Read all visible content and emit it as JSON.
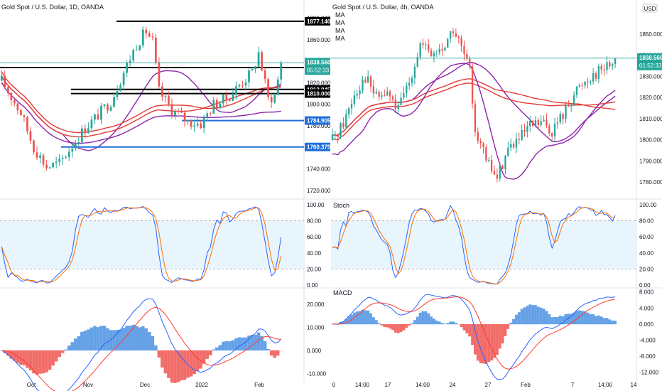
{
  "chart_data": [
    {
      "type": "candlestick",
      "title": "Gold Spot / U.S. Dollar, 1D, OANDA",
      "y_axis": {
        "range": [
          1712,
          1885
        ],
        "ticks": [
          1720.0,
          1740.0,
          1760.0,
          1780.0,
          1800.0,
          1820.0,
          1840.0,
          1860.0,
          1880.0
        ]
      },
      "x_ticks": [
        "Oct",
        "Nov",
        "Dec",
        "2022",
        "Feb"
      ],
      "horizontal_levels": [
        {
          "value": 1877.14,
          "label": "1877.140",
          "color": "#000000"
        },
        {
          "value": 1834.195,
          "label": "1834.195",
          "color": "#000000"
        },
        {
          "value": 1813.845,
          "label": "1813.845",
          "color": "#000000"
        },
        {
          "value": 1810.0,
          "label": "1810.000",
          "color": "#000000"
        },
        {
          "value": 1784.905,
          "label": "1784.905",
          "color": "#1e6fd9"
        },
        {
          "value": 1760.375,
          "label": "1760.375",
          "color": "#1e6fd9"
        }
      ],
      "last_price": {
        "value": 1838.56,
        "label": "1838.560",
        "countdown": "05:52:33"
      },
      "stochastic": {
        "ticks": [
          0.0,
          20.0,
          40.0,
          60.0,
          80.0,
          100.0
        ],
        "band": [
          20,
          80
        ]
      },
      "macd": {
        "ticks": [
          -10.0,
          0.0,
          10.0,
          20.0
        ]
      }
    },
    {
      "type": "candlestick",
      "title": "Gold Spot / U.S. Dollar, 4h, OANDA",
      "legend": [
        "MA",
        "MA",
        "MA",
        "MA"
      ],
      "y_axis": {
        "range": [
          1772,
          1860
        ],
        "ticks": [
          1780.0,
          1790.0,
          1800.0,
          1810.0,
          1820.0,
          1830.0,
          1840.0,
          1850.0,
          1860.0
        ]
      },
      "x_ticks": [
        "0",
        "14:00",
        "17",
        "14:00",
        "24",
        "27",
        "Feb",
        "7",
        "14:00",
        "14"
      ],
      "last_price": {
        "value": 1838.56,
        "label": "1838.560",
        "countdown": "01:52:33"
      },
      "currency_badge": "USD",
      "stochastic": {
        "label": "Stoch",
        "ticks": [
          0.0,
          20.0,
          40.0,
          60.0,
          80.0,
          100.0
        ],
        "band": [
          20,
          80
        ]
      },
      "macd": {
        "label": "MACD",
        "ticks": [
          -12.0,
          -8.0,
          -4.0,
          0.0,
          4.0,
          8.0
        ]
      }
    }
  ],
  "colors": {
    "up": "#26a69a",
    "down": "#ef5350",
    "grid_border": "#e0e3eb",
    "band_fill": "#e3f2fd",
    "stoch_k": "#2962ff",
    "stoch_d": "#ff6d00",
    "macd_line": "#2962ff",
    "signal_line": "#ff3b30",
    "hist_up": "#4a90e2",
    "hist_down": "#ef5350",
    "ma_red": "#e53935",
    "ma_purple": "#8e24aa"
  }
}
